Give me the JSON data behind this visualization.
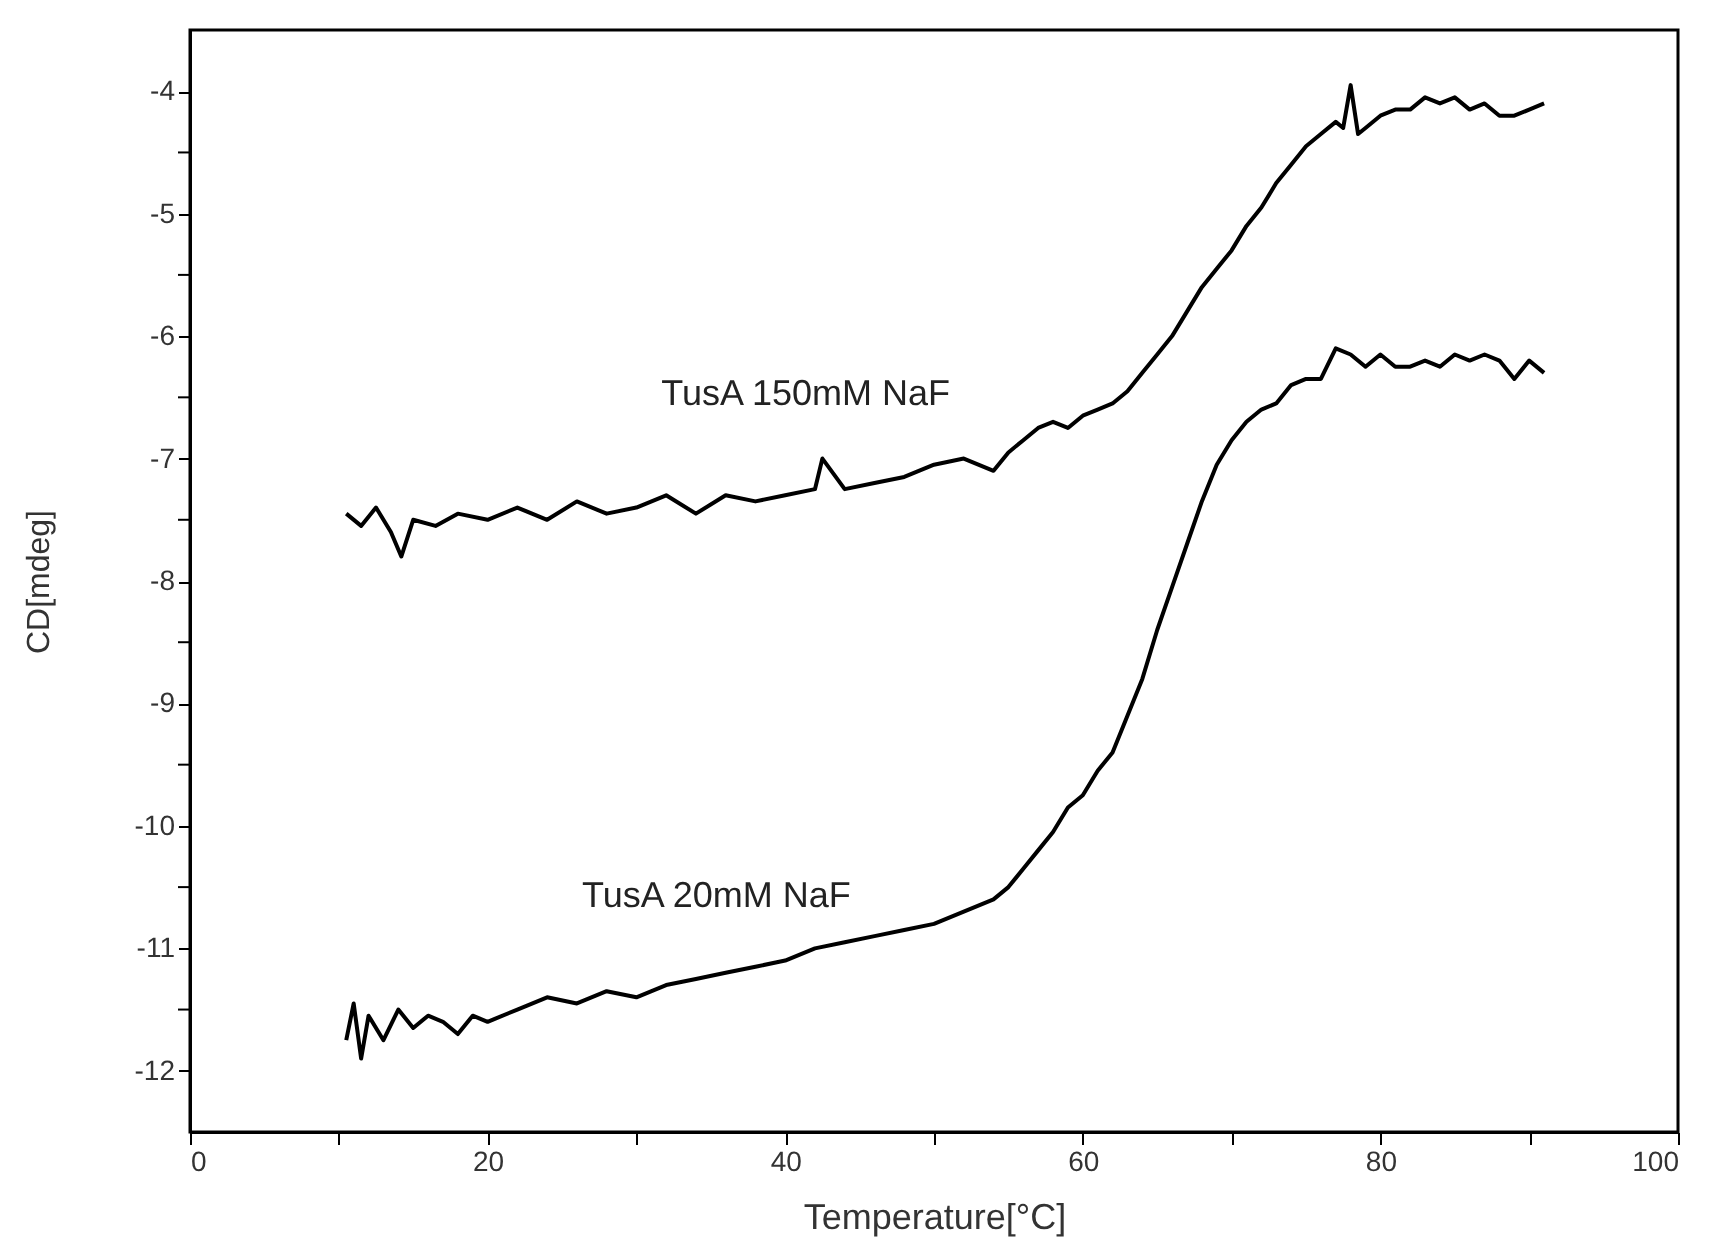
{
  "chart_data": {
    "type": "line",
    "xlabel": "Temperature[°C]",
    "ylabel": "CD[mdeg]",
    "xlim": [
      0,
      100
    ],
    "ylim": [
      -12.5,
      -3.5
    ],
    "xticks": [
      0,
      {
        "value": 10,
        "label": null
      },
      20,
      {
        "value": 30,
        "label": null
      },
      40,
      {
        "value": 50,
        "label": null
      },
      60,
      {
        "value": 70,
        "label": null
      },
      80,
      {
        "value": 90,
        "label": null
      },
      100
    ],
    "yticks": [
      -12,
      {
        "value": -11.5,
        "label": null
      },
      -11,
      {
        "value": -10.5,
        "label": null
      },
      -10,
      {
        "value": -9.5,
        "label": null
      },
      -9,
      {
        "value": -8.5,
        "label": null
      },
      -8,
      {
        "value": -7.5,
        "label": null
      },
      -7,
      {
        "value": -6.5,
        "label": null
      },
      -6,
      {
        "value": -5.5,
        "label": null
      },
      -5,
      {
        "value": -4.5,
        "label": null
      },
      -4
    ],
    "grid": false,
    "legend": false,
    "marker": "none",
    "line_style": "solid",
    "series": [
      {
        "name": "TusA 150mM NaF",
        "color": "#000000",
        "x": [
          10.5,
          11.5,
          12.5,
          13.5,
          14.2,
          15,
          16.5,
          18,
          20,
          22,
          24,
          26,
          28,
          30,
          32,
          34,
          36,
          38,
          40,
          42,
          42.5,
          44,
          46,
          48,
          50,
          52,
          54,
          55,
          56,
          57,
          58,
          59,
          60,
          61,
          62,
          63,
          64,
          65,
          66,
          67,
          68,
          69,
          70,
          71,
          72,
          73,
          74,
          75,
          76,
          77,
          77.5,
          78,
          78.5,
          79,
          80,
          81,
          82,
          83,
          84,
          85,
          86,
          87,
          88,
          89,
          90,
          91
        ],
        "values": [
          -7.45,
          -7.55,
          -7.4,
          -7.6,
          -7.8,
          -7.5,
          -7.55,
          -7.45,
          -7.5,
          -7.4,
          -7.5,
          -7.35,
          -7.45,
          -7.4,
          -7.3,
          -7.45,
          -7.3,
          -7.35,
          -7.3,
          -7.25,
          -7.0,
          -7.25,
          -7.2,
          -7.15,
          -7.05,
          -7.0,
          -7.1,
          -6.95,
          -6.85,
          -6.75,
          -6.7,
          -6.75,
          -6.65,
          -6.6,
          -6.55,
          -6.45,
          -6.3,
          -6.15,
          -6.0,
          -5.8,
          -5.6,
          -5.45,
          -5.3,
          -5.1,
          -4.95,
          -4.75,
          -4.6,
          -4.45,
          -4.35,
          -4.25,
          -4.3,
          -3.95,
          -4.35,
          -4.3,
          -4.2,
          -4.15,
          -4.15,
          -4.05,
          -4.1,
          -4.05,
          -4.15,
          -4.1,
          -4.2,
          -4.2,
          -4.15,
          -4.1
        ]
      },
      {
        "name": "TusA 20mM NaF",
        "color": "#000000",
        "x": [
          10.5,
          11,
          11.5,
          12,
          13,
          14,
          15,
          16,
          17,
          18,
          19,
          20,
          22,
          24,
          26,
          28,
          30,
          32,
          34,
          36,
          38,
          40,
          42,
          44,
          46,
          48,
          50,
          52,
          54,
          55,
          56,
          57,
          58,
          59,
          60,
          61,
          62,
          63,
          64,
          65,
          66,
          67,
          68,
          69,
          70,
          71,
          72,
          73,
          74,
          75,
          76,
          77,
          78,
          79,
          80,
          81,
          82,
          83,
          84,
          85,
          86,
          87,
          88,
          89,
          90,
          91
        ],
        "values": [
          -11.75,
          -11.45,
          -11.9,
          -11.55,
          -11.75,
          -11.5,
          -11.65,
          -11.55,
          -11.6,
          -11.7,
          -11.55,
          -11.6,
          -11.5,
          -11.4,
          -11.45,
          -11.35,
          -11.4,
          -11.3,
          -11.25,
          -11.2,
          -11.15,
          -11.1,
          -11.0,
          -10.95,
          -10.9,
          -10.85,
          -10.8,
          -10.7,
          -10.6,
          -10.5,
          -10.35,
          -10.2,
          -10.05,
          -9.85,
          -9.75,
          -9.55,
          -9.4,
          -9.1,
          -8.8,
          -8.4,
          -8.05,
          -7.7,
          -7.35,
          -7.05,
          -6.85,
          -6.7,
          -6.6,
          -6.55,
          -6.4,
          -6.35,
          -6.35,
          -6.1,
          -6.15,
          -6.25,
          -6.15,
          -6.25,
          -6.25,
          -6.2,
          -6.25,
          -6.15,
          -6.2,
          -6.15,
          -6.2,
          -6.35,
          -6.2,
          -6.3
        ]
      }
    ]
  }
}
